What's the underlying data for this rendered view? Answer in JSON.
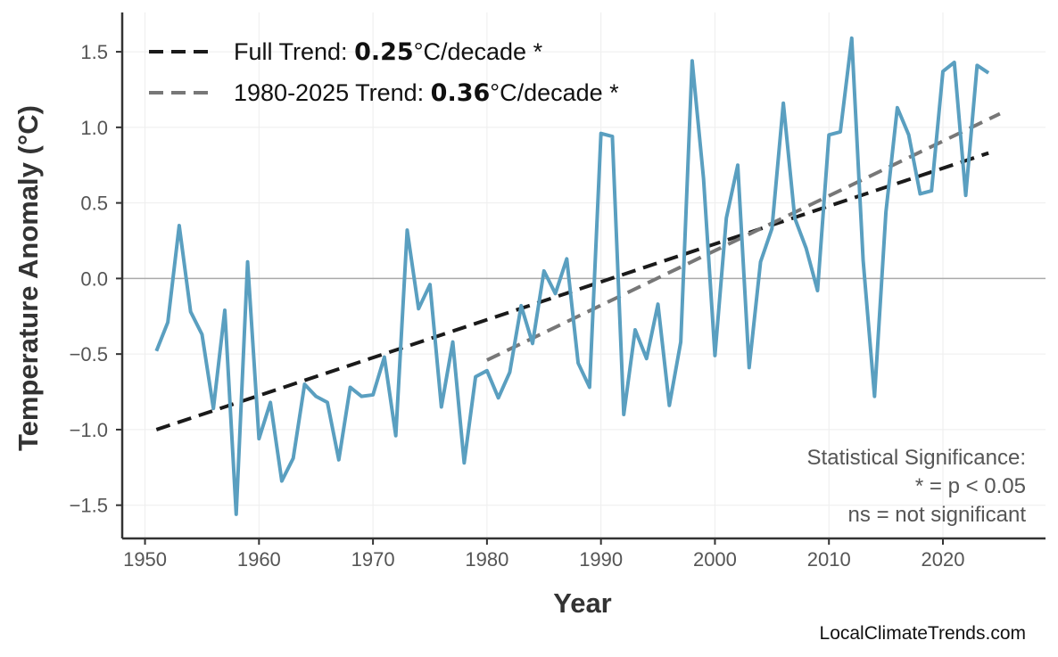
{
  "chart_data": {
    "type": "line",
    "xlabel": "Year",
    "ylabel": "Temperature Anomaly (°C)",
    "xlim": [
      1948,
      2029
    ],
    "ylim": [
      -1.72,
      1.76
    ],
    "xticks": [
      1950,
      1960,
      1970,
      1980,
      1990,
      2000,
      2010,
      2020
    ],
    "yticks": [
      -1.5,
      -1.0,
      -0.5,
      0.0,
      0.5,
      1.0,
      1.5
    ],
    "ytick_labels": [
      "−1.5",
      "−1.0",
      "−0.5",
      "0.0",
      "0.5",
      "1.0",
      "1.5"
    ],
    "grid": true,
    "colors": {
      "series": "#5a9fc0",
      "full_trend": "#1a1a1a",
      "recent_trend": "#777777",
      "zero_line": "#aaaaaa"
    },
    "series": [
      {
        "x": [
          1951,
          1952,
          1953,
          1954,
          1955,
          1956,
          1957,
          1958,
          1959,
          1960,
          1961,
          1962,
          1963,
          1964,
          1965,
          1966,
          1967,
          1968,
          1969,
          1970,
          1971,
          1972,
          1973,
          1974,
          1975,
          1976,
          1977,
          1978,
          1979,
          1980,
          1981,
          1982,
          1983,
          1984,
          1985,
          1986,
          1987,
          1988,
          1989,
          1990,
          1991,
          1992,
          1993,
          1994,
          1995,
          1996,
          1997,
          1998,
          1999,
          2000,
          2001,
          2002,
          2003,
          2004,
          2005,
          2006,
          2007,
          2008,
          2009,
          2010,
          2011,
          2012,
          2013,
          2014,
          2015,
          2016,
          2017,
          2018,
          2019,
          2020,
          2021,
          2022,
          2023,
          2024
        ],
        "values": [
          -0.48,
          -0.29,
          0.35,
          -0.22,
          -0.37,
          -0.86,
          -0.21,
          -1.56,
          0.11,
          -1.06,
          -0.82,
          -1.34,
          -1.19,
          -0.7,
          -0.78,
          -0.82,
          -1.2,
          -0.72,
          -0.78,
          -0.77,
          -0.52,
          -1.04,
          0.32,
          -0.2,
          -0.04,
          -0.85,
          -0.42,
          -1.22,
          -0.65,
          -0.61,
          -0.79,
          -0.62,
          -0.18,
          -0.43,
          0.05,
          -0.1,
          0.13,
          -0.56,
          -0.72,
          0.96,
          0.94,
          -0.9,
          -0.34,
          -0.53,
          -0.17,
          -0.84,
          -0.42,
          1.44,
          0.66,
          -0.51,
          0.4,
          0.75,
          -0.59,
          0.11,
          0.33,
          1.16,
          0.4,
          0.2,
          -0.08,
          0.95,
          0.97,
          1.59,
          0.12,
          -0.78,
          0.44,
          1.13,
          0.95,
          0.56,
          0.58,
          1.37,
          1.43,
          0.55,
          1.41,
          1.36
        ]
      }
    ],
    "trends": [
      {
        "name_prefix": "Full Trend: ",
        "rate": "0.25",
        "unit": "°C/decade *",
        "x": [
          1951,
          2024
        ],
        "y": [
          -1.0,
          0.83
        ],
        "style": "dashed"
      },
      {
        "name_prefix": "1980-2025 Trend: ",
        "rate": "0.36",
        "unit": "°C/decade *",
        "x": [
          1980,
          2025
        ],
        "y": [
          -0.54,
          1.09
        ],
        "style": "dashed"
      }
    ],
    "legend_position": "top-left",
    "annotation": [
      "Statistical Significance:",
      "* = p < 0.05",
      "ns = not significant"
    ]
  },
  "watermark": "LocalClimateTrends.com"
}
